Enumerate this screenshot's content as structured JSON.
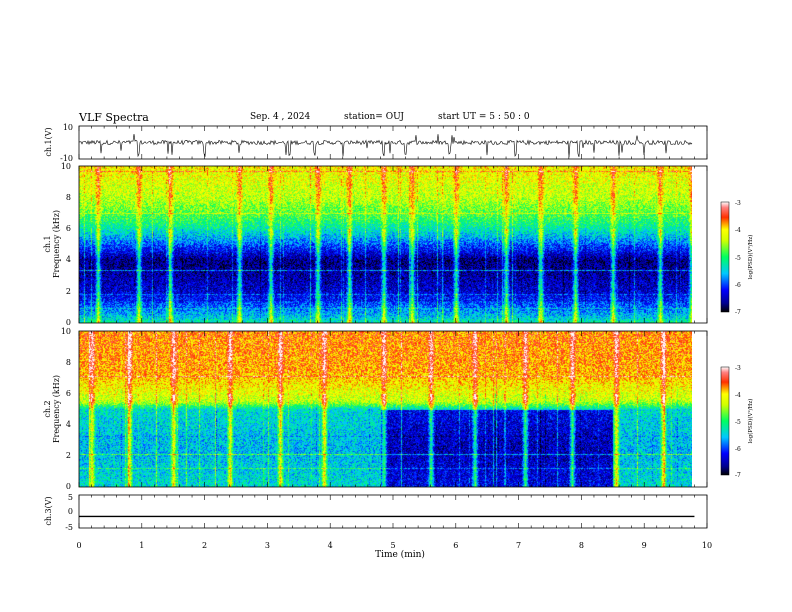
{
  "header": {
    "title": "VLF Spectra",
    "date": "Sep. 4 , 2024",
    "station": "station= OUJ",
    "start": "start  UT =  5 : 50 : 0"
  },
  "chart_data": [
    {
      "id": "ch1-waveform",
      "type": "line",
      "ylabel": "ch.1(V)",
      "ylim": [
        -10,
        10
      ],
      "yticks": [
        "10",
        "-10"
      ],
      "xlim": [
        0,
        10
      ],
      "baseline": 0,
      "noise_amplitude": 1.3,
      "spike_times_min": [
        0.35,
        0.95,
        1.42,
        1.48,
        2.0,
        2.55,
        3.3,
        3.35,
        3.75,
        4.2,
        4.85,
        4.95,
        5.2,
        5.9,
        6.5,
        6.95,
        7.8,
        7.95,
        8.2,
        8.6,
        8.65,
        9.0,
        9.35
      ]
    },
    {
      "id": "ch1-spectrogram",
      "type": "heatmap",
      "ylabel_line1": "ch.1",
      "ylabel_line2": "Frequency (kHz)",
      "ylim": [
        0,
        10
      ],
      "yticks": [
        "0",
        "2",
        "4",
        "6",
        "8",
        "10"
      ],
      "xlim": [
        0,
        9.8
      ],
      "colorbar_label": "log(PSD)(V²/Hz)",
      "colorbar_ticks": [
        "-3",
        "-4",
        "-5",
        "-6",
        "-7"
      ],
      "colorbar_range": [
        -7,
        -3
      ],
      "psd_levels": [
        {
          "freq_khz": 10.0,
          "log_psd": -4.1
        },
        {
          "freq_khz": 8.0,
          "log_psd": -4.4
        },
        {
          "freq_khz": 6.5,
          "log_psd": -5.0
        },
        {
          "freq_khz": 5.5,
          "log_psd": -5.6
        },
        {
          "freq_khz": 4.0,
          "log_psd": -6.7
        },
        {
          "freq_khz": 2.0,
          "log_psd": -6.4
        },
        {
          "freq_khz": 0.5,
          "log_psd": -5.6
        },
        {
          "freq_khz": 0.0,
          "log_psd": -5.2
        }
      ],
      "burst_times_min": [
        0.3,
        0.95,
        1.45,
        2.55,
        3.05,
        3.8,
        4.3,
        4.85,
        5.3,
        6.0,
        6.8,
        7.35,
        7.9,
        8.5,
        9.25,
        9.75
      ]
    },
    {
      "id": "ch2-spectrogram",
      "type": "heatmap",
      "ylabel_line1": "ch.2",
      "ylabel_line2": "Frequency (kHz)",
      "ylim": [
        0,
        10
      ],
      "yticks": [
        "0",
        "2",
        "4",
        "6",
        "8",
        "10"
      ],
      "xlim": [
        0,
        9.8
      ],
      "colorbar_label": "log(PSD)(V²/Hz)",
      "colorbar_ticks": [
        "-3",
        "-4",
        "-5",
        "-6",
        "-7"
      ],
      "colorbar_range": [
        -7,
        -3
      ],
      "psd_levels": [
        {
          "freq_khz": 10.0,
          "log_psd": -3.7
        },
        {
          "freq_khz": 7.5,
          "log_psd": -3.8
        },
        {
          "freq_khz": 5.5,
          "log_psd": -4.4
        },
        {
          "freq_khz": 5.0,
          "log_psd": -5.4
        },
        {
          "freq_khz": 2.5,
          "log_psd": -5.6
        },
        {
          "freq_khz": 0.0,
          "log_psd": -5.4
        }
      ],
      "quiet_interval_min": [
        4.8,
        8.5
      ],
      "burst_times_min": [
        0.2,
        0.8,
        1.5,
        2.4,
        3.2,
        3.9,
        4.85,
        5.6,
        6.3,
        7.1,
        7.85,
        8.55,
        9.3
      ]
    },
    {
      "id": "ch3-waveform",
      "type": "line",
      "ylabel": "ch.3(V)",
      "ylim": [
        -5,
        5
      ],
      "yticks": [
        "5",
        "0",
        "-5"
      ],
      "xlim": [
        0,
        9.8
      ],
      "value": -1.5
    }
  ],
  "time_axis": {
    "label": "Time (min)",
    "ticks": [
      "0",
      "1",
      "2",
      "3",
      "4",
      "5",
      "6",
      "7",
      "8",
      "9",
      "10"
    ],
    "range": [
      0,
      10
    ]
  }
}
